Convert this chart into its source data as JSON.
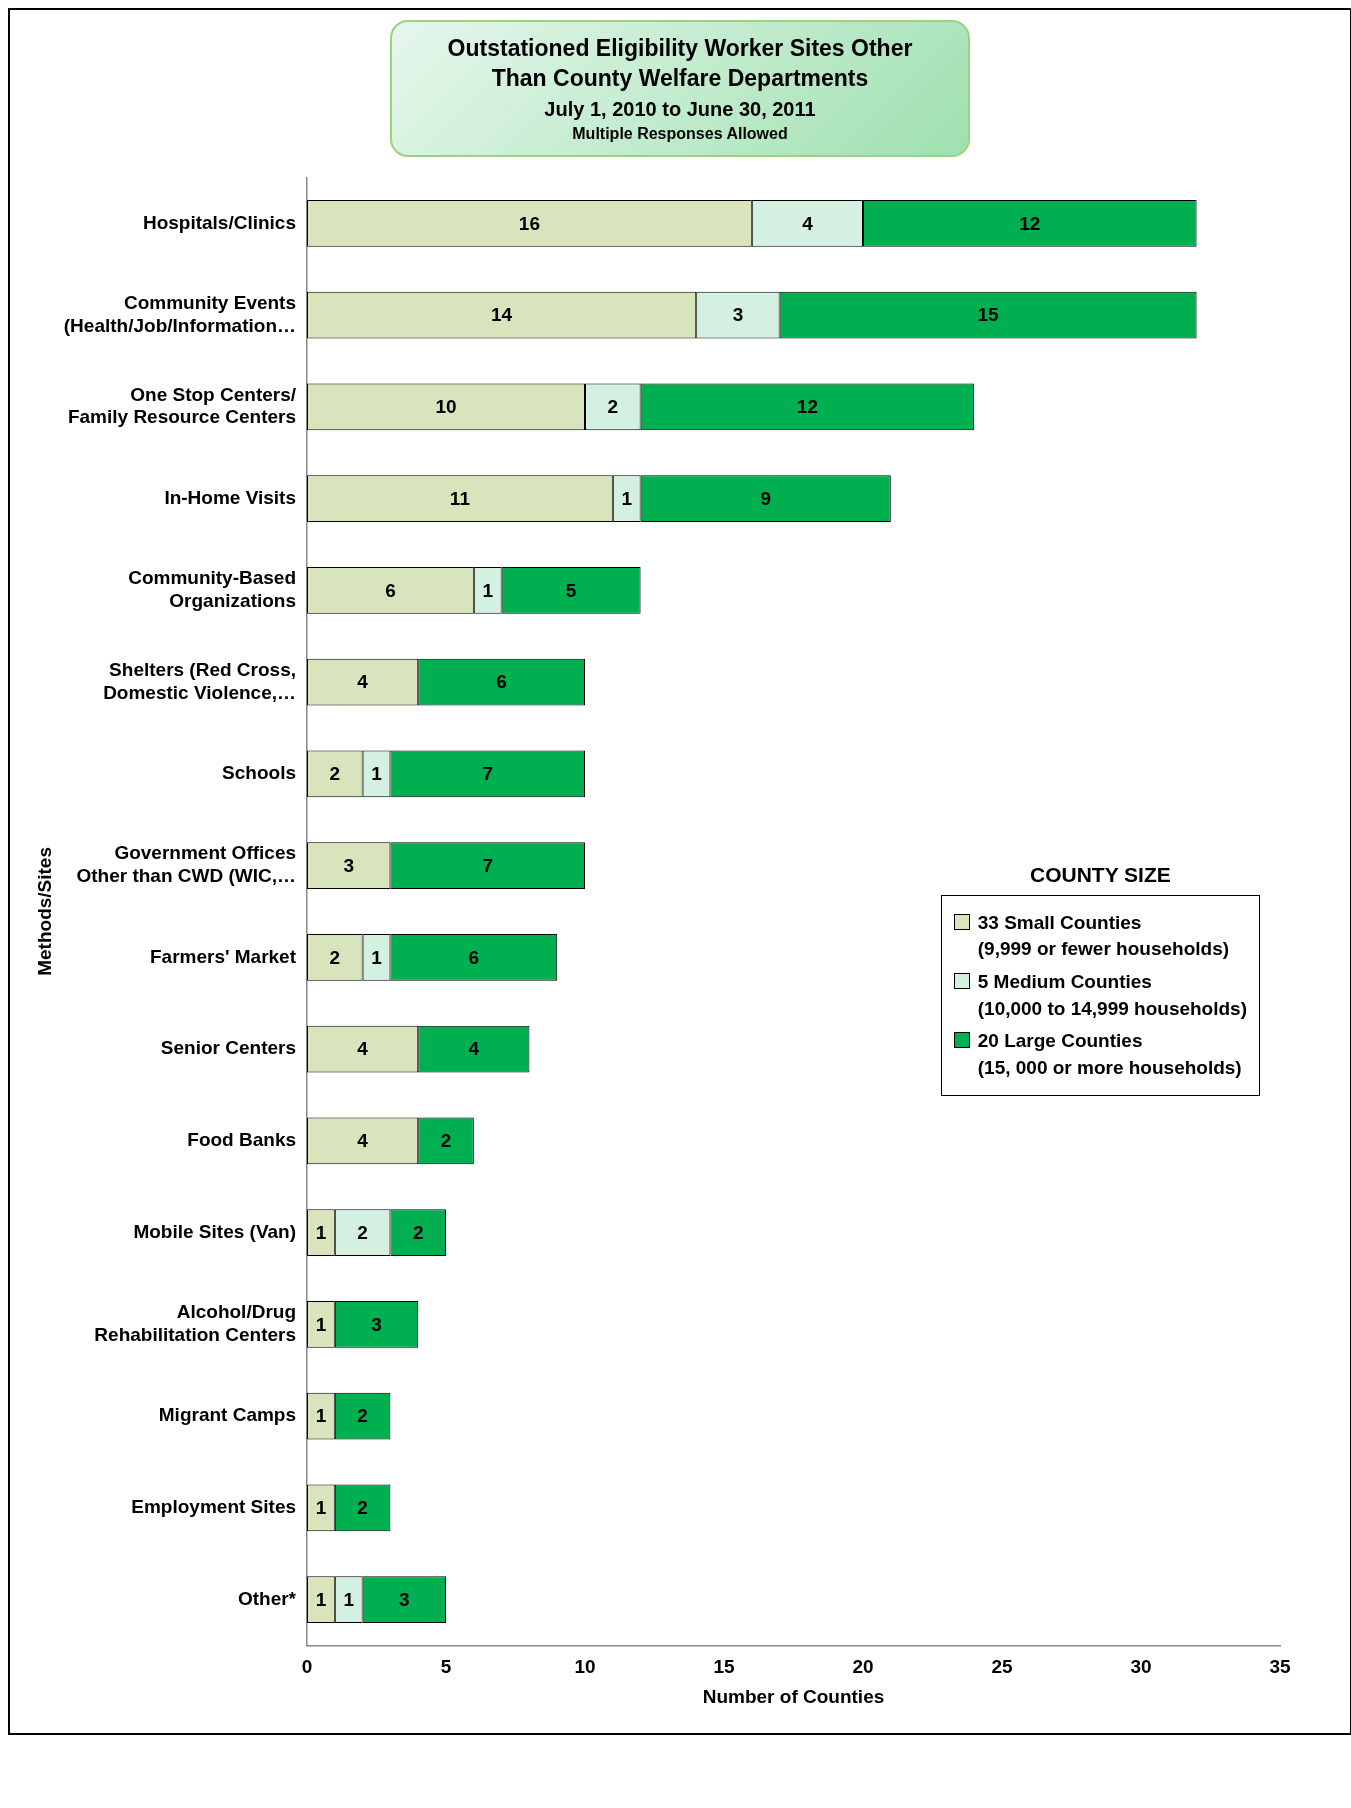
{
  "chart_data": {
    "type": "bar",
    "orientation": "horizontal",
    "stacked": true,
    "title": "Outstationed Eligibility Worker Sites Other Than County Welfare Departments",
    "subtitle": "July 1, 2010 to June 30, 2011",
    "annotations": [
      "Multiple Responses Allowed"
    ],
    "xlabel": "Number of Counties",
    "ylabel": "Methods/Sites",
    "legend_title": "COUNTY SIZE",
    "categories": [
      "Hospitals/Clinics",
      "Community Events\n(Health/Job/Information…",
      "One Stop Centers/\nFamily Resource Centers",
      "In-Home Visits",
      "Community-Based\nOrganizations",
      "Shelters (Red Cross,\nDomestic Violence,…",
      "Schools",
      "Government Offices\nOther than CWD (WIC,…",
      "Farmers' Market",
      "Senior Centers",
      "Food Banks",
      "Mobile Sites (Van)",
      "Alcohol/Drug\nRehabilitation Centers",
      "Migrant Camps",
      "Employment Sites",
      "Other*"
    ],
    "series": [
      {
        "name": "33 Small Counties\n(9,999 or fewer households)",
        "color": "#d8e4bc",
        "values": [
          16,
          14,
          10,
          11,
          6,
          4,
          2,
          3,
          2,
          4,
          4,
          1,
          1,
          1,
          1,
          1
        ]
      },
      {
        "name": "5 Medium Counties\n(10,000 to 14,999 households)",
        "color": "#d4f0e0",
        "values": [
          4,
          3,
          2,
          1,
          1,
          null,
          1,
          null,
          1,
          null,
          null,
          2,
          null,
          null,
          null,
          1
        ]
      },
      {
        "name": "20 Large Counties\n(15, 000 or more households)",
        "color": "#00b050",
        "values": [
          12,
          15,
          12,
          9,
          5,
          6,
          7,
          7,
          6,
          4,
          2,
          2,
          3,
          2,
          2,
          3
        ]
      }
    ],
    "xlim": [
      0,
      35
    ],
    "xticks": [
      0,
      5,
      10,
      15,
      20,
      25,
      30,
      35
    ],
    "data_labels": true,
    "grid": false,
    "legend": "right"
  }
}
